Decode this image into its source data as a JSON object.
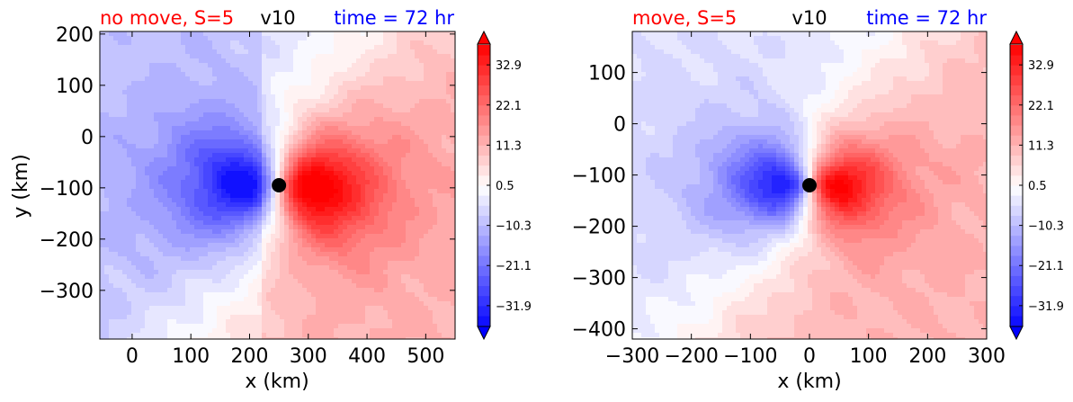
{
  "colors": {
    "left_title": "#ff0000",
    "center_title": "#000000",
    "right_title": "#0000ff",
    "positive_max": "#ff0000",
    "negative_max": "#0000ff",
    "zero": "#ffffff",
    "storm_marker": "#000000"
  },
  "chart_data": [
    {
      "type": "heatmap",
      "title_left": "no move, S=5",
      "title_center": "v10",
      "title_right": "time = 72 hr",
      "xlabel": "x (km)",
      "ylabel": "y (km)",
      "xlim": [
        -55,
        550
      ],
      "ylim": [
        -395,
        205
      ],
      "xticks": [
        0,
        100,
        200,
        300,
        400,
        500
      ],
      "yticks": [
        -300,
        -200,
        -100,
        0,
        100,
        200
      ],
      "xtick_labels": [
        "0",
        "100",
        "200",
        "300",
        "400",
        "500"
      ],
      "ytick_labels": [
        "−300",
        "−200",
        "−100",
        "0",
        "100",
        "200"
      ],
      "storm_center": [
        250,
        -95
      ],
      "colorbar_range": [
        -37.5,
        38.5
      ],
      "colorbar_ticks": [
        32.9,
        22.1,
        11.3,
        0.5,
        -10.3,
        -21.1,
        -31.9
      ],
      "colorbar_tick_labels": [
        "32.9",
        "22.1",
        "11.3",
        "0.5",
        "−10.3",
        "−21.1",
        "−31.9"
      ]
    },
    {
      "type": "heatmap",
      "title_left": "move, S=5",
      "title_center": "v10",
      "title_right": "time = 72 hr",
      "xlabel": "x (km)",
      "ylabel": "",
      "xlim": [
        -300,
        300
      ],
      "ylim": [
        -420,
        180
      ],
      "xticks": [
        -300,
        -200,
        -100,
        0,
        100,
        200,
        300
      ],
      "yticks": [
        -400,
        -300,
        -200,
        -100,
        0,
        100
      ],
      "xtick_labels": [
        "−300",
        "−200",
        "−100",
        "0",
        "100",
        "200",
        "300"
      ],
      "ytick_labels": [
        "−400",
        "−300",
        "−200",
        "−100",
        "0",
        "100"
      ],
      "storm_center": [
        0,
        -120
      ],
      "colorbar_range": [
        -37.5,
        38.5
      ],
      "colorbar_ticks": [
        32.9,
        22.1,
        11.3,
        0.5,
        -10.3,
        -21.1,
        -31.9
      ],
      "colorbar_tick_labels": [
        "32.9",
        "22.1",
        "11.3",
        "0.5",
        "−10.3",
        "−21.1",
        "−31.9"
      ]
    }
  ]
}
